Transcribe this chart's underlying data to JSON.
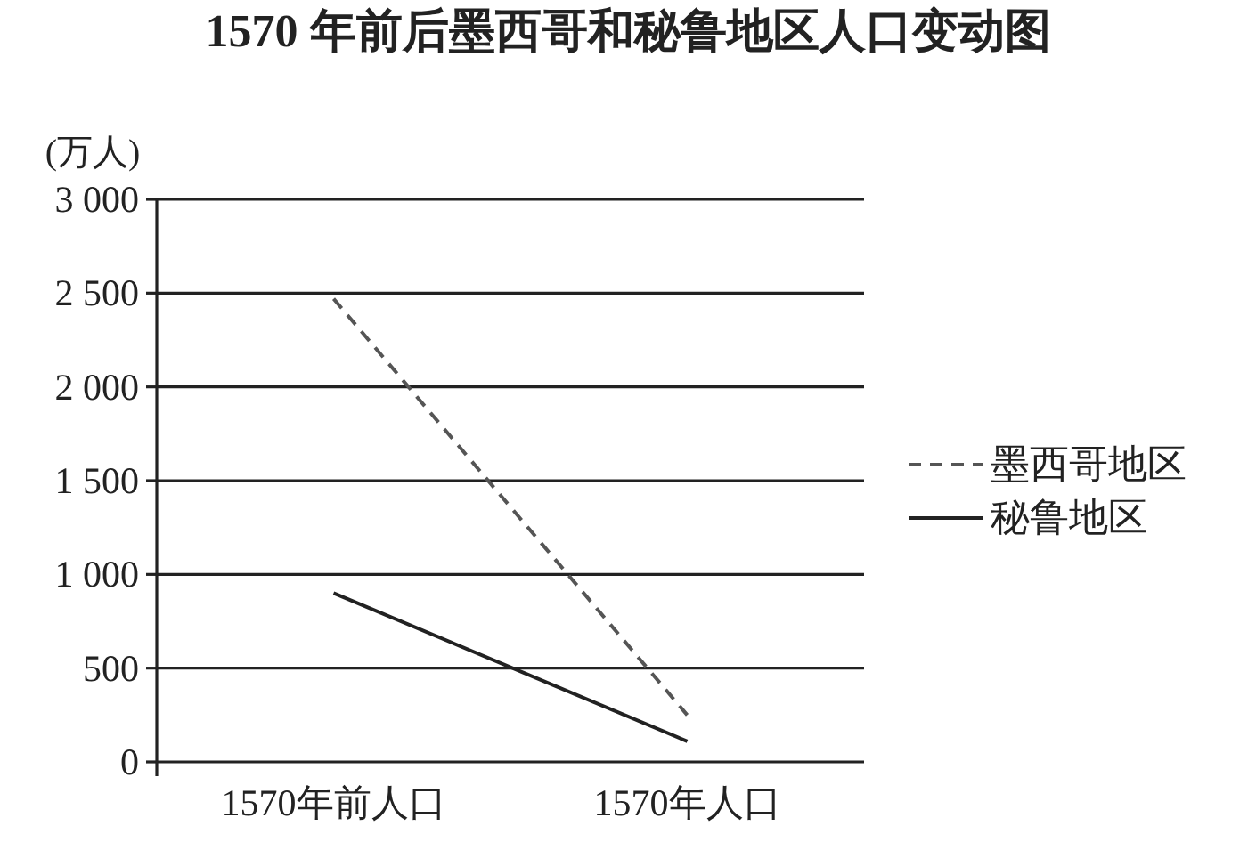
{
  "chart_data": {
    "type": "line",
    "title": "1570 年前后墨西哥和秘鲁地区人口变动图",
    "ylabel": "(万人)",
    "categories": [
      "1570年前人口",
      "1570年人口"
    ],
    "series": [
      {
        "name": "墨西哥地区",
        "color": "#555555",
        "line_style": "dashed",
        "values": [
          2470,
          250
        ]
      },
      {
        "name": "秘鲁地区",
        "color": "#222222",
        "line_style": "solid",
        "values": [
          900,
          110
        ]
      }
    ],
    "ylim": [
      0,
      3000
    ],
    "yticks": [
      0,
      500,
      {
        "value": 1000,
        "label": "1 000"
      },
      {
        "value": 1500,
        "label": "1 500"
      },
      {
        "value": 2000,
        "label": "2 000"
      },
      {
        "value": 2500,
        "label": "2 500"
      },
      {
        "value": 3000,
        "label": "3 000"
      }
    ],
    "grid": "y",
    "legend": "right",
    "marker": "none"
  }
}
